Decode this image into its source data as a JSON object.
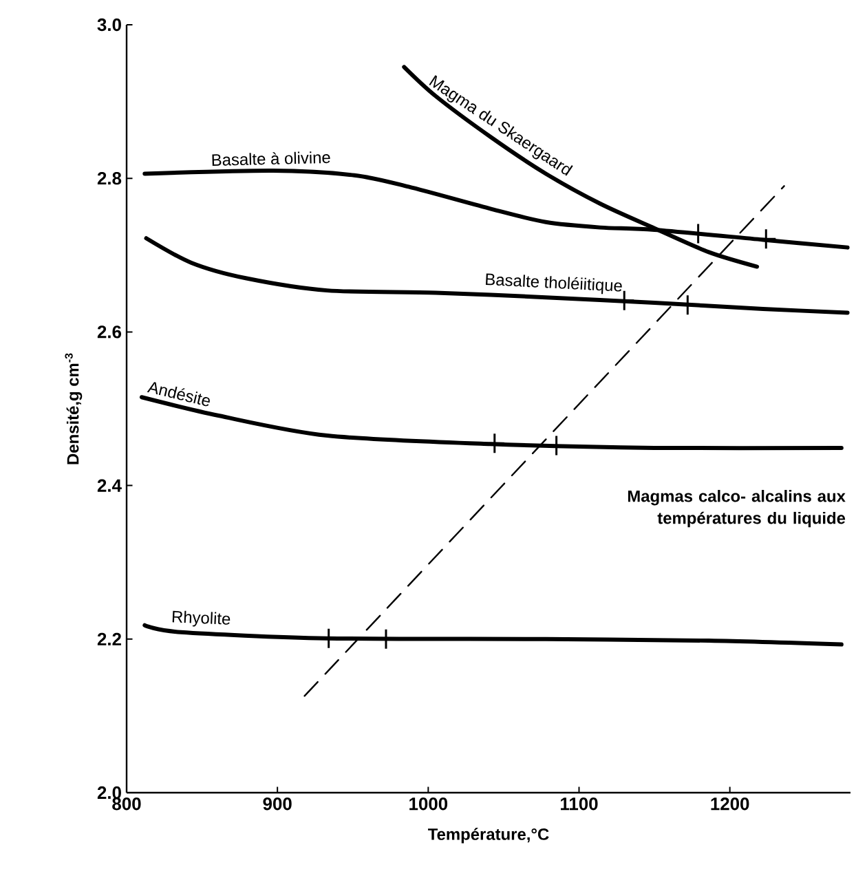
{
  "chart_data": {
    "type": "line",
    "xlabel": "Température,°C",
    "ylabel": "Densité,g cm$^{-3}$",
    "xlim": [
      800,
      1280
    ],
    "ylim": [
      2.0,
      3.0
    ],
    "xticks": [
      800,
      900,
      1000,
      1100,
      1200
    ],
    "yticks": [
      {
        "value": 2.0,
        "label": "2.0"
      },
      2.2,
      2.4,
      2.6,
      2.8,
      {
        "value": 3.0,
        "label": "3.0"
      }
    ],
    "grid": false,
    "annotations": [
      "Magmas calco- alcalins aux températures du liquide"
    ],
    "series": [
      {
        "name": "Basalte à olivine",
        "color": "#000000",
        "x": [
          812,
          897,
          951,
          987,
          1042,
          1078,
          1114,
          1150,
          1222,
          1278
        ],
        "values": [
          2.806,
          2.81,
          2.804,
          2.789,
          2.76,
          2.743,
          2.736,
          2.733,
          2.72,
          2.71
        ]
      },
      {
        "name": "Magma du Skaergaard",
        "color": "#000000",
        "x": [
          984,
          1005,
          1042,
          1078,
          1114,
          1150,
          1186,
          1218
        ],
        "values": [
          2.945,
          2.907,
          2.853,
          2.806,
          2.767,
          2.735,
          2.704,
          2.685
        ]
      },
      {
        "name": "Basalte tholéiitique",
        "color": "#000000",
        "x": [
          813,
          843,
          879,
          933,
          1005,
          1078,
          1150,
          1222,
          1278
        ],
        "values": [
          2.722,
          2.69,
          2.67,
          2.654,
          2.651,
          2.645,
          2.638,
          2.63,
          2.625
        ]
      },
      {
        "name": "Andésite",
        "color": "#000000",
        "x": [
          810,
          861,
          933,
          1041,
          1150,
          1274
        ],
        "values": [
          2.515,
          2.491,
          2.465,
          2.454,
          2.449,
          2.449
        ]
      },
      {
        "name": "Rhyolite",
        "color": "#000000",
        "x": [
          812,
          836,
          933,
          1078,
          1186,
          1274
        ],
        "values": [
          2.218,
          2.209,
          2.201,
          2.2,
          2.198,
          2.193
        ]
      },
      {
        "type": "line",
        "line_style": "dashed",
        "color": "#000000",
        "x": [
          918,
          1236
        ],
        "values": [
          2.126,
          2.79
        ]
      },
      {
        "type": "scatter",
        "marker": "cross",
        "color": "#000000",
        "x": [
          1179,
          1224,
          1130,
          1172,
          1044,
          1085,
          934,
          972
        ],
        "values": [
          2.728,
          2.721,
          2.641,
          2.635,
          2.455,
          2.452,
          2.201,
          2.2
        ]
      }
    ]
  }
}
